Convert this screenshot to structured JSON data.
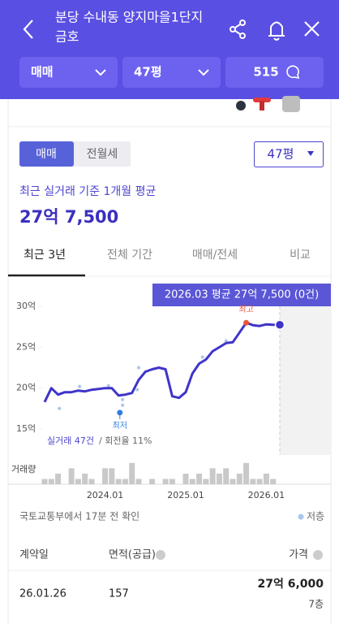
{
  "header": {
    "title_line1": "분당 수내동 양지마을1단지",
    "title_line2": "금호",
    "filters": [
      "매매",
      "47평",
      "515"
    ]
  },
  "toggle": [
    "매매",
    "전월세"
  ],
  "area_select": "47평",
  "summary": {
    "caption": "최근 실거래 기준 1개월 평균",
    "price": "27억 7,500"
  },
  "tabs": [
    "최근 3년",
    "전체 기간",
    "매매/전세",
    "비교"
  ],
  "chart": {
    "type": "line",
    "categories": [
      null,
      null,
      null,
      null,
      null,
      null,
      null,
      null,
      null,
      "2024.01",
      null,
      null,
      null,
      null,
      null,
      null,
      null,
      null,
      null,
      null,
      null,
      "2025.01",
      null,
      null,
      null,
      null,
      null,
      null,
      null,
      null,
      null,
      null,
      null,
      "2026.01",
      null,
      null
    ],
    "values": [
      18.3,
      20.0,
      19.2,
      19.5,
      19.5,
      19.7,
      19.6,
      19.8,
      19.9,
      20.0,
      20.0,
      19.1,
      19.2,
      19.4,
      21.0,
      22.0,
      22.3,
      22.5,
      22.3,
      19.0,
      18.8,
      19.5,
      21.8,
      23.0,
      23.5,
      24.5,
      25.0,
      25.5,
      25.6,
      26.8,
      28.0,
      27.7,
      27.6,
      27.8,
      27.75,
      27.75
    ],
    "color": "#3f34c9",
    "ylim": [
      14,
      31.5
    ],
    "yticks": [
      {
        "value": 15,
        "label": "15억"
      },
      {
        "value": 20,
        "label": "20억"
      },
      {
        "value": 25,
        "label": "25억"
      },
      {
        "value": 30,
        "label": "30억"
      }
    ],
    "tooltip": "2026.03 평균 27억 7,500 (0건)",
    "high_label": "최고",
    "low_label": "최저",
    "points": {
      "x": [
        2.2,
        5.2,
        9.5,
        11.2,
        11.6,
        11.6,
        13.8,
        14.0,
        23.5,
        27.0
      ],
      "values": [
        17.5,
        20.2,
        20.3,
        17.0,
        17.9,
        18.6,
        19.8,
        22.5,
        23.8,
        25.8
      ],
      "color": "#a9c6ec"
    },
    "stats_count": "실거래 47건",
    "stats_rate": "/ 회전율 11%",
    "volume_label": "거래량",
    "volume": [
      1,
      1,
      2,
      0,
      3,
      1,
      2,
      1,
      0,
      3,
      3,
      1,
      1,
      4,
      1,
      0,
      1,
      0,
      1,
      1,
      0,
      2,
      1,
      2,
      1,
      3,
      2,
      3,
      1,
      2,
      4,
      1,
      1,
      2,
      1,
      0
    ],
    "volume_ylim": [
      0,
      5.5
    ]
  },
  "source": "국토교통부에서 17분 전 확인",
  "legend": "저층",
  "table": {
    "headers": [
      "계약일",
      "면적(공급)",
      "가격"
    ],
    "rows": [
      [
        "26.01.26",
        "157",
        "27억 6,000",
        "7층"
      ]
    ]
  }
}
